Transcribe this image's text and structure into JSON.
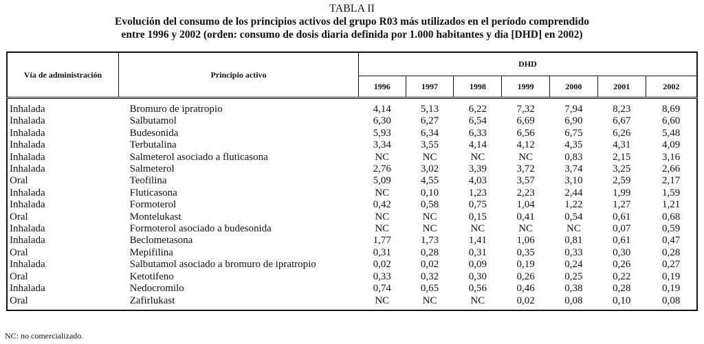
{
  "title": "TABLA II",
  "subtitle_line1": "Evolución del consumo de los principios activos del grupo R03 más utilizados en el período comprendido",
  "subtitle_line2": "entre 1996 y 2002 (orden: consumo de dosis diaria definida por 1.000 habitantes y día [DHD] en 2002)",
  "headers": {
    "via": "Vía de administración",
    "principio": "Principio activo",
    "dhd": "DHD",
    "years": [
      "1996",
      "1997",
      "1998",
      "1999",
      "2000",
      "2001",
      "2002"
    ]
  },
  "rows": [
    {
      "via": "Inhalada",
      "principio": "Bromuro de ipratropio",
      "values": [
        "4,14",
        "5,13",
        "6,22",
        "7,32",
        "7,94",
        "8,23",
        "8,69"
      ]
    },
    {
      "via": "Inhalada",
      "principio": "Salbutamol",
      "values": [
        "6,30",
        "6,27",
        "6,54",
        "6,69",
        "6,90",
        "6,67",
        "6,60"
      ]
    },
    {
      "via": "Inhalada",
      "principio": "Budesonida",
      "values": [
        "5,93",
        "6,34",
        "6,33",
        "6,56",
        "6,75",
        "6,26",
        "5,48"
      ]
    },
    {
      "via": "Inhalada",
      "principio": "Terbutalina",
      "values": [
        "3,34",
        "3,55",
        "4,14",
        "4,12",
        "4,35",
        "4,31",
        "4,09"
      ]
    },
    {
      "via": "Inhalada",
      "principio": "Salmeterol asociado a fluticasona",
      "values": [
        "NC",
        "NC",
        "NC",
        "NC",
        "0,83",
        "2,15",
        "3,16"
      ]
    },
    {
      "via": "Inhalada",
      "principio": "Salmeterol",
      "values": [
        "2,76",
        "3,02",
        "3,39",
        "3,72",
        "3,74",
        "3,25",
        "2,66"
      ]
    },
    {
      "via": "Oral",
      "principio": "Teofilina",
      "values": [
        "5,09",
        "4,55",
        "4,03",
        "3,57",
        "3,10",
        "2,59",
        "2,17"
      ]
    },
    {
      "via": "Inhalada",
      "principio": "Fluticasona",
      "values": [
        "NC",
        "0,10",
        "1,23",
        "2,23",
        "2,44",
        "1,99",
        "1,59"
      ]
    },
    {
      "via": "Inhalada",
      "principio": "Formoterol",
      "values": [
        "0,42",
        "0,58",
        "0,75",
        "1,04",
        "1,22",
        "1,27",
        "1,21"
      ]
    },
    {
      "via": "Oral",
      "principio": "Montelukast",
      "values": [
        "NC",
        "NC",
        "0,15",
        "0,41",
        "0,54",
        "0,61",
        "0,68"
      ]
    },
    {
      "via": "Inhalada",
      "principio": "Formoterol asociado a budesonida",
      "values": [
        "NC",
        "NC",
        "NC",
        "NC",
        "NC",
        "0,07",
        "0,59"
      ]
    },
    {
      "via": "Inhalada",
      "principio": "Beclometasona",
      "values": [
        "1,77",
        "1,73",
        "1,41",
        "1,06",
        "0,81",
        "0,61",
        "0,47"
      ]
    },
    {
      "via": "Oral",
      "principio": "Mepifilina",
      "values": [
        "0,31",
        "0,28",
        "0,31",
        "0,35",
        "0,33",
        "0,30",
        "0,28"
      ]
    },
    {
      "via": "Inhalada",
      "principio": "Salbutamol asociado a bromuro de ipratropio",
      "values": [
        "0,02",
        "0,02",
        "0,09",
        "0,19",
        "0,24",
        "0,26",
        "0,27"
      ]
    },
    {
      "via": "Oral",
      "principio": "Ketotifeno",
      "values": [
        "0,33",
        "0,32",
        "0,30",
        "0,26",
        "0,25",
        "0,22",
        "0,19"
      ]
    },
    {
      "via": "Inhalada",
      "principio": "Nedocromilo",
      "values": [
        "0,74",
        "0,65",
        "0,56",
        "0,46",
        "0,38",
        "0,28",
        "0,19"
      ]
    },
    {
      "via": "Oral",
      "principio": "Zafirlukast",
      "values": [
        "NC",
        "NC",
        "NC",
        "0,02",
        "0,08",
        "0,10",
        "0,08"
      ]
    }
  ],
  "footnote": "NC: no comercializado."
}
